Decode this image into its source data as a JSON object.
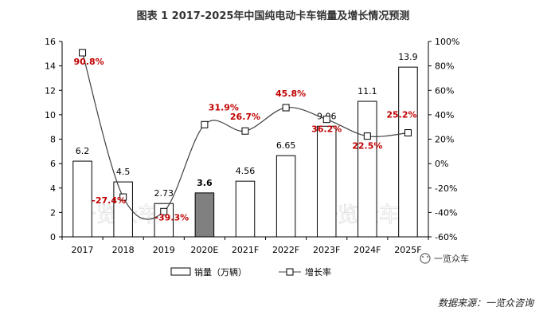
{
  "chart_data": {
    "type": "bar",
    "title": "图表  1  2017-2025年中国纯电动卡车销量及增长情况预测",
    "categories": [
      "2017",
      "2018",
      "2019",
      "2020E",
      "2021F",
      "2022F",
      "2023F",
      "2024F",
      "2025F"
    ],
    "bar_labels": [
      "6.2",
      "4.5",
      "2.73",
      "3.6",
      "4.56",
      "6.65",
      "9.06",
      "11.1",
      "13.9"
    ],
    "line_labels": [
      "90.8%",
      "-27.4%",
      "-39.3%",
      "31.9%",
      "26.7%",
      "45.8%",
      "36.2%",
      "22.5%",
      "25.2%"
    ],
    "series": [
      {
        "name": "销量（万辆）",
        "type": "bar",
        "axis": "left",
        "values": [
          6.2,
          4.5,
          2.73,
          3.6,
          4.56,
          6.65,
          9.06,
          11.1,
          13.9
        ]
      },
      {
        "name": "增长率",
        "type": "line",
        "axis": "right",
        "values": [
          90.8,
          -27.4,
          -39.3,
          31.9,
          26.7,
          45.8,
          36.2,
          22.5,
          25.2
        ]
      }
    ],
    "y_left": {
      "min": 0,
      "max": 16,
      "ticks": [
        "0",
        "2",
        "4",
        "6",
        "8",
        "10",
        "12",
        "14",
        "16"
      ]
    },
    "y_right": {
      "min": -60,
      "max": 100,
      "ticks": [
        "-60%",
        "-40%",
        "-20%",
        "0%",
        "20%",
        "40%",
        "60%",
        "80%",
        "100%"
      ]
    },
    "highlight_category": "2020E",
    "grid": false,
    "legend_position": "bottom"
  },
  "watermark": "一览众车",
  "brand": "一览众车",
  "source": "数据来源：一览众咨询",
  "colors": {
    "bar_fill": "#ffffff",
    "bar_highlight": "#808080",
    "line": "#404040",
    "line_label": "#c00000"
  }
}
